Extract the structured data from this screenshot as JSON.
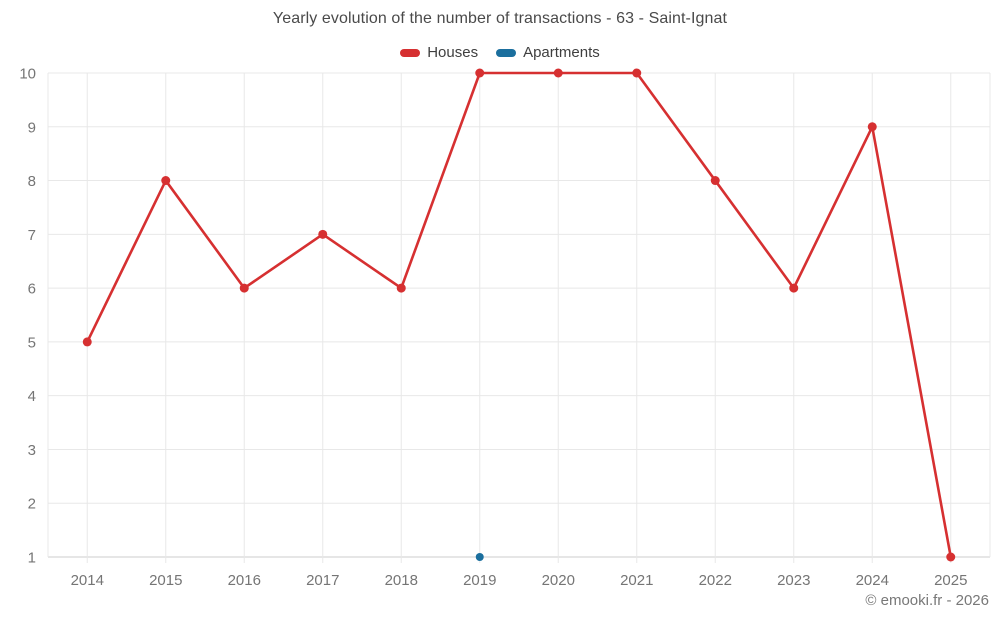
{
  "header": {
    "title": "Yearly evolution of the number of transactions - 63 - Saint-Ignat"
  },
  "legend": {
    "items": [
      {
        "label": "Houses",
        "color": "#d63031"
      },
      {
        "label": "Apartments",
        "color": "#1b6f9e"
      }
    ]
  },
  "footer": {
    "copyright": "© emooki.fr - 2026"
  },
  "chart_data": {
    "type": "line",
    "title": "Yearly evolution of the number of transactions - 63 - Saint-Ignat",
    "categories": [
      "2014",
      "2015",
      "2016",
      "2017",
      "2018",
      "2019",
      "2020",
      "2021",
      "2022",
      "2023",
      "2024",
      "2025"
    ],
    "series": [
      {
        "name": "Houses",
        "color": "#d63031",
        "marker_radius": 4.5,
        "values": [
          5,
          8,
          6,
          7,
          6,
          10,
          10,
          10,
          8,
          6,
          9,
          1
        ]
      },
      {
        "name": "Apartments",
        "color": "#1b6f9e",
        "marker_radius": 4,
        "values": [
          null,
          null,
          null,
          null,
          null,
          1,
          null,
          null,
          null,
          null,
          null,
          null
        ]
      }
    ],
    "ylim": [
      1,
      10
    ],
    "y_ticks": [
      1,
      2,
      3,
      4,
      5,
      6,
      7,
      8,
      9,
      10
    ],
    "grid": true,
    "legend_position": "top",
    "grid_color": "#e8e8e8",
    "axis_color": "#cccccc",
    "tick_label_color": "#757575"
  }
}
